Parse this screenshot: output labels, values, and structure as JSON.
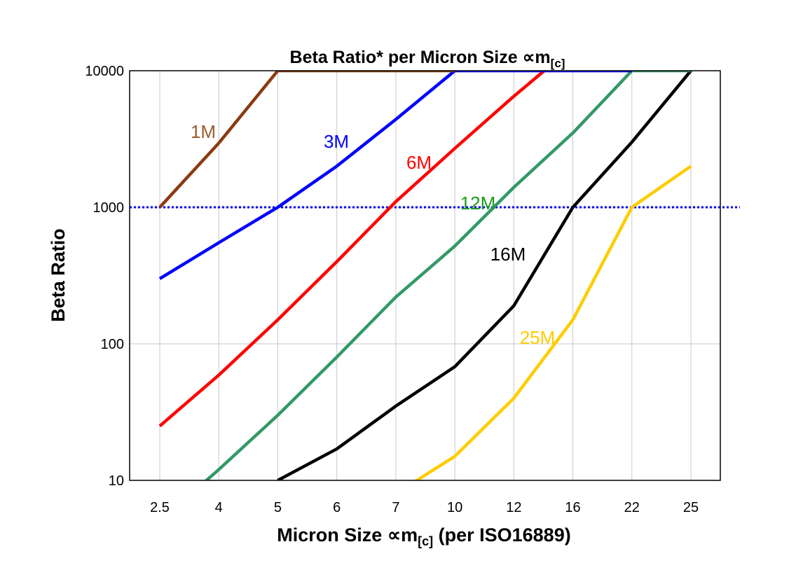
{
  "chart_data": {
    "type": "line",
    "title": "Beta Ratio* per Micron Size ∝m",
    "title_sub": "[c]",
    "xlabel": "Micron Size ∝m",
    "xlabel_sub": "[c]",
    "xlabel_suffix": " (per ISO16889)",
    "ylabel": "Beta Ratio",
    "categories": [
      "2.5",
      "4",
      "5",
      "6",
      "7",
      "10",
      "12",
      "16",
      "22",
      "25"
    ],
    "y_scale": "log",
    "ylim": [
      10,
      10000
    ],
    "yticks": [
      "10",
      "100",
      "1000",
      "10000"
    ],
    "grid": true,
    "reference_line": {
      "value": 1000,
      "color": "#0000FF",
      "style": "dotted"
    },
    "series": [
      {
        "name": "25M",
        "color": "#FFCC00",
        "label_color": "#FFCC00",
        "points": [
          [
            4,
            8
          ],
          [
            5,
            15
          ],
          [
            6,
            40
          ],
          [
            7,
            150
          ],
          [
            8,
            1000
          ],
          [
            9,
            2000
          ]
        ]
      },
      {
        "name": "16M",
        "color": "#000000",
        "label_color": "#000000",
        "points": [
          [
            2,
            10
          ],
          [
            3,
            17
          ],
          [
            4,
            35
          ],
          [
            5,
            68
          ],
          [
            6,
            190
          ],
          [
            7,
            1000
          ],
          [
            8,
            3000
          ],
          [
            9,
            10000
          ]
        ]
      },
      {
        "name": "6M",
        "color": "#FF0000",
        "label_color": "#FF0000",
        "points": [
          [
            0,
            25
          ],
          [
            1,
            59
          ],
          [
            2,
            150
          ],
          [
            3,
            400
          ],
          [
            4,
            1100
          ],
          [
            5,
            2700
          ],
          [
            6,
            6500
          ],
          [
            7,
            15000
          ]
        ]
      },
      {
        "name": "12M",
        "color": "#339966",
        "label_color": "#1E9A1E",
        "points": [
          [
            0,
            5
          ],
          [
            1,
            12
          ],
          [
            2,
            30
          ],
          [
            3,
            80
          ],
          [
            4,
            220
          ],
          [
            5,
            520
          ],
          [
            6,
            1400
          ],
          [
            7,
            3500
          ],
          [
            8,
            10000
          ],
          [
            9,
            10000
          ]
        ]
      },
      {
        "name": "3M",
        "color": "#0000FF",
        "label_color": "#0000FF",
        "points": [
          [
            0,
            300
          ],
          [
            1,
            550
          ],
          [
            2,
            1000
          ],
          [
            3,
            2000
          ],
          [
            4,
            4400
          ],
          [
            5,
            10000
          ],
          [
            6,
            10000
          ],
          [
            7,
            10000
          ],
          [
            8,
            10000
          ]
        ]
      },
      {
        "name": "1M",
        "color": "#8B3A0F",
        "label_color": "#9C5A2C",
        "points": [
          [
            0,
            1000
          ],
          [
            1,
            2950
          ],
          [
            2,
            10000
          ],
          [
            3,
            10000
          ],
          [
            4,
            10000
          ],
          [
            5,
            10000
          ]
        ]
      }
    ]
  }
}
